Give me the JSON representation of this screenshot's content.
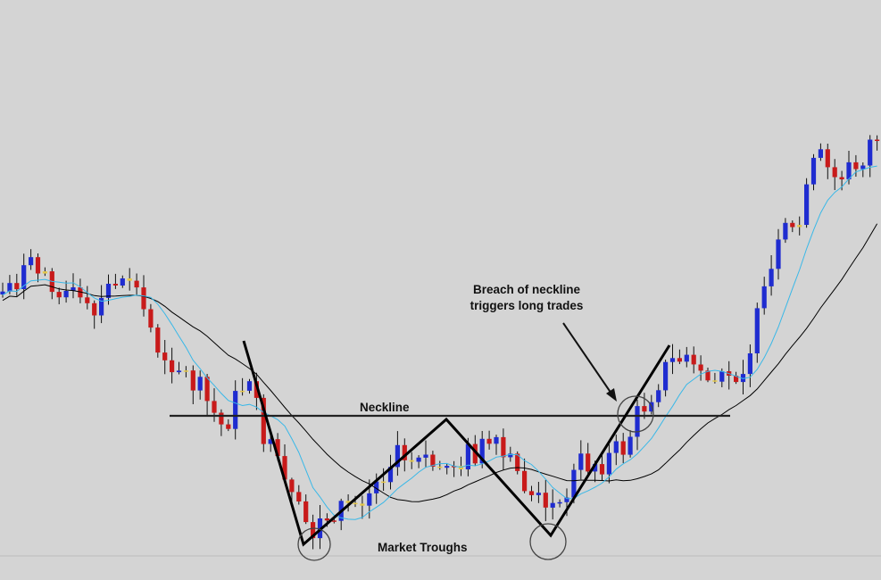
{
  "chart_data": {
    "type": "candlestick",
    "pattern": "double bottom",
    "grid": false,
    "colors": {
      "background": "#d4d4d4",
      "bullish": "#1f2cd0",
      "bearish": "#c81a1a",
      "doji": "#e6c84a",
      "fast_ma": "#39b8e8",
      "slow_ma": "#000000",
      "annotation": "#000000"
    },
    "annotations": {
      "neckline_label": "Neckline",
      "breakout_line1": "Breach of neckline",
      "breakout_line2": "triggers long trades",
      "troughs_label": "Market Troughs"
    }
  }
}
